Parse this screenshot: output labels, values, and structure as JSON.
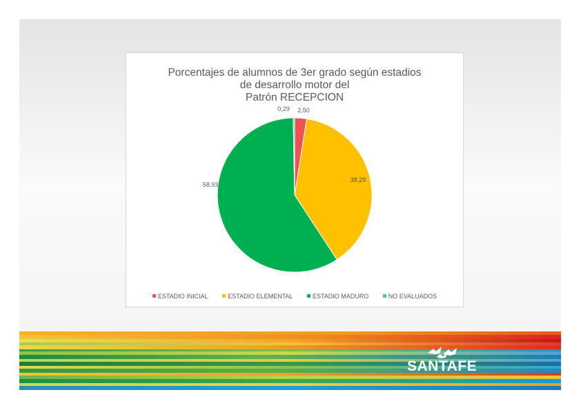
{
  "chart_data": {
    "type": "pie",
    "title_lines": [
      "Porcentajes de alumnos de 3er grado según estadios",
      "de desarrollo motor del",
      "Patrón RECEPCION"
    ],
    "categories": [
      "ESTADIO INICIAL",
      "ESTADIO ELEMENTAL",
      "ESTADIO MADURO",
      "NO EVALUADOS"
    ],
    "values": [
      2.5,
      38.29,
      58.93,
      0.29
    ],
    "labels": [
      "2,50",
      "38,29",
      "58,93",
      "0,29"
    ],
    "colors": [
      "#ee5255",
      "#ffc000",
      "#00b050",
      "#3fc7b6"
    ],
    "legend_position": "bottom"
  },
  "footer": {
    "logo_text": "SANTAFE"
  }
}
